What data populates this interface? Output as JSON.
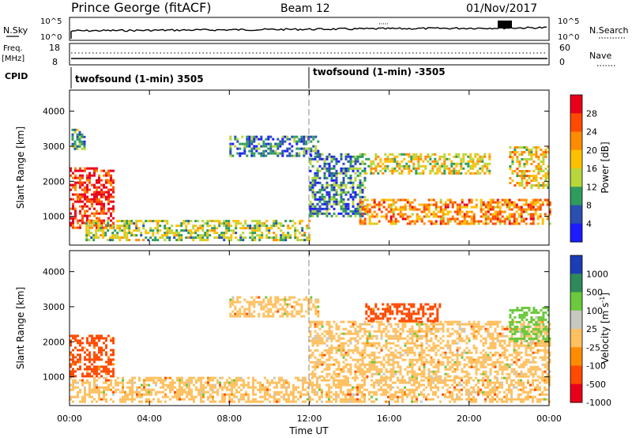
{
  "header": {
    "station": "Prince George (fitACF)",
    "beam": "Beam 12",
    "date": "01/Nov/2017"
  },
  "strip_nsky": {
    "left_label": "N.Sky",
    "left_ticks": [
      "10^5",
      "10^0"
    ],
    "right_ticks": [
      "10^5",
      "10^0"
    ],
    "right_label": "N.Search"
  },
  "strip_freq": {
    "left_label_top": "Freq.",
    "left_label_unit": "[MHz]",
    "left_ticks": [
      "18",
      "8"
    ],
    "right_ticks": [
      "60",
      "0"
    ],
    "right_label": "Nave"
  },
  "cpid": {
    "label": "CPID",
    "segments": [
      {
        "start_hour": 0,
        "text": "twofsound (1-min) 3505"
      },
      {
        "start_hour": 12,
        "text": "twofsound (1-min) -3505"
      }
    ]
  },
  "chart_data": [
    {
      "type": "heatmap",
      "name": "power-panel",
      "ylabel": "Slant Range [km]",
      "xlabel": "",
      "ylim": [
        180,
        4600
      ],
      "xlim": [
        0,
        24
      ],
      "yticks": [
        1000,
        2000,
        3000,
        4000
      ],
      "colorbar": {
        "label": "Power [dB]",
        "ticks": [
          "28",
          "24",
          "20",
          "16",
          "12",
          "8",
          "4"
        ],
        "colors": [
          "#e8001a",
          "#ff4a00",
          "#ff8c00",
          "#ffc000",
          "#b6d63c",
          "#2e9c5c",
          "#2a4fb0",
          "#1c1cff"
        ]
      },
      "regions": [
        {
          "t0": 0.0,
          "t1": 2.2,
          "r0": 650,
          "r1": 2400,
          "level": 26
        },
        {
          "t0": 0.1,
          "t1": 0.7,
          "r0": 2900,
          "r1": 3500,
          "level": 8
        },
        {
          "t0": 0.8,
          "t1": 12.0,
          "r0": 300,
          "r1": 900,
          "level": 12
        },
        {
          "t0": 8.0,
          "t1": 12.5,
          "r0": 2700,
          "r1": 3300,
          "level": 6
        },
        {
          "t0": 12.0,
          "t1": 14.8,
          "r0": 1000,
          "r1": 2800,
          "level": 6
        },
        {
          "t0": 14.5,
          "t1": 24.0,
          "r0": 800,
          "r1": 1500,
          "level": 20
        },
        {
          "t0": 14.8,
          "t1": 21.0,
          "r0": 2200,
          "r1": 2800,
          "level": 14
        },
        {
          "t0": 22.0,
          "t1": 24.0,
          "r0": 1800,
          "r1": 3000,
          "level": 16
        }
      ]
    },
    {
      "type": "heatmap",
      "name": "velocity-panel",
      "ylabel": "Slant Range [km]",
      "xlabel": "Time UT",
      "ylim": [
        180,
        4600
      ],
      "xlim": [
        0,
        24
      ],
      "yticks": [
        1000,
        2000,
        3000,
        4000
      ],
      "xticks": [
        "00:00",
        "04:00",
        "08:00",
        "12:00",
        "16:00",
        "20:00",
        "00:00"
      ],
      "colorbar": {
        "label": "Velocity [m s^-1]",
        "ticks": [
          "1000",
          "500",
          "100",
          "25",
          "-25",
          "-100",
          "-500",
          "-1000"
        ],
        "colors": [
          "#1c3cb4",
          "#2e8a5a",
          "#6cc83c",
          "#c8c8c0",
          "#ffc060",
          "#ff8c00",
          "#ff4a00",
          "#e8001a"
        ]
      },
      "regions": [
        {
          "t0": 0.0,
          "t1": 2.2,
          "r0": 1000,
          "r1": 2200,
          "level": -150
        },
        {
          "t0": 0.0,
          "t1": 24.0,
          "r0": 300,
          "r1": 1000,
          "level": 0
        },
        {
          "t0": 8.0,
          "t1": 12.5,
          "r0": 2700,
          "r1": 3300,
          "level": 0
        },
        {
          "t0": 12.0,
          "t1": 24.0,
          "r0": 1000,
          "r1": 2600,
          "level": 0
        },
        {
          "t0": 14.8,
          "t1": 18.5,
          "r0": 2600,
          "r1": 3100,
          "level": -200
        },
        {
          "t0": 22.0,
          "t1": 24.0,
          "r0": 2000,
          "r1": 3000,
          "level": 150
        }
      ]
    }
  ]
}
